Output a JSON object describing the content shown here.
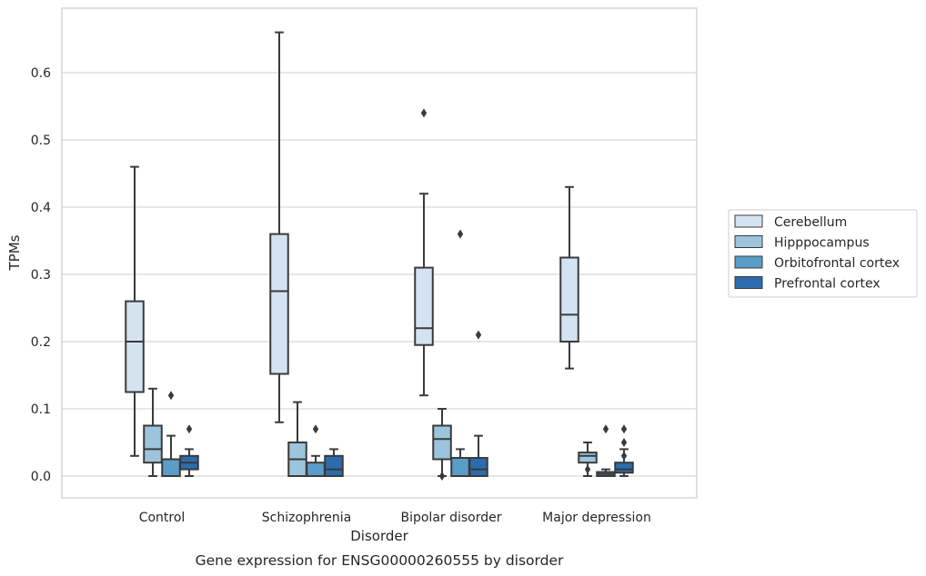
{
  "chart_data": {
    "type": "box",
    "title": "",
    "caption": "Gene expression for ENSG00000260555 by disorder",
    "xlabel": "Disorder",
    "ylabel": "TPMs",
    "ylim": [
      -0.032,
      0.7
    ],
    "yticks": [
      0.0,
      0.1,
      0.2,
      0.3,
      0.4,
      0.5,
      0.6
    ],
    "ytick_labels": [
      "0.0",
      "0.1",
      "0.2",
      "0.3",
      "0.4",
      "0.5",
      "0.6"
    ],
    "grid": "horizontal",
    "legend_position": "right",
    "categories": [
      "Control",
      "Schizophrenia",
      "Bipolar disorder",
      "Major depression"
    ],
    "series": [
      {
        "name": "Cerebellum",
        "color": "#d4e3f1",
        "boxes": [
          {
            "whisker_low": 0.03,
            "q1": 0.125,
            "median": 0.2,
            "q3": 0.26,
            "whisker_high": 0.46,
            "outliers": []
          },
          {
            "whisker_low": 0.08,
            "q1": 0.152,
            "median": 0.275,
            "q3": 0.36,
            "whisker_high": 0.66,
            "outliers": []
          },
          {
            "whisker_low": 0.12,
            "q1": 0.195,
            "median": 0.22,
            "q3": 0.31,
            "whisker_high": 0.42,
            "outliers": [
              0.54
            ]
          },
          {
            "whisker_low": 0.16,
            "q1": 0.2,
            "median": 0.24,
            "q3": 0.325,
            "whisker_high": 0.43,
            "outliers": []
          }
        ]
      },
      {
        "name": "Hipppocampus",
        "color": "#9cc4dc",
        "boxes": [
          {
            "whisker_low": 0.0,
            "q1": 0.02,
            "median": 0.04,
            "q3": 0.075,
            "whisker_high": 0.13,
            "outliers": []
          },
          {
            "whisker_low": 0.0,
            "q1": 0.0,
            "median": 0.025,
            "q3": 0.05,
            "whisker_high": 0.11,
            "outliers": []
          },
          {
            "whisker_low": 0.0,
            "q1": 0.025,
            "median": 0.055,
            "q3": 0.075,
            "whisker_high": 0.1,
            "outliers": [
              0.0
            ]
          },
          {
            "whisker_low": 0.0,
            "q1": 0.02,
            "median": 0.03,
            "q3": 0.035,
            "whisker_high": 0.05,
            "outliers": [
              0.01
            ]
          }
        ]
      },
      {
        "name": "Orbitofrontal cortex",
        "color": "#5a9dc9",
        "boxes": [
          {
            "whisker_low": 0.0,
            "q1": 0.0,
            "median": 0.0,
            "q3": 0.025,
            "whisker_high": 0.06,
            "outliers": [
              0.12
            ]
          },
          {
            "whisker_low": 0.0,
            "q1": 0.0,
            "median": 0.0,
            "q3": 0.02,
            "whisker_high": 0.03,
            "outliers": [
              0.07
            ]
          },
          {
            "whisker_low": 0.0,
            "q1": 0.0,
            "median": 0.0,
            "q3": 0.027,
            "whisker_high": 0.04,
            "outliers": [
              0.36
            ]
          },
          {
            "whisker_low": 0.0,
            "q1": 0.0,
            "median": 0.003,
            "q3": 0.006,
            "whisker_high": 0.01,
            "outliers": [
              0.07
            ]
          }
        ]
      },
      {
        "name": "Prefrontal cortex",
        "color": "#2c6cad",
        "boxes": [
          {
            "whisker_low": 0.0,
            "q1": 0.01,
            "median": 0.02,
            "q3": 0.03,
            "whisker_high": 0.04,
            "outliers": [
              0.07
            ]
          },
          {
            "whisker_low": 0.0,
            "q1": 0.0,
            "median": 0.01,
            "q3": 0.03,
            "whisker_high": 0.04,
            "outliers": []
          },
          {
            "whisker_low": 0.0,
            "q1": 0.0,
            "median": 0.01,
            "q3": 0.027,
            "whisker_high": 0.06,
            "outliers": [
              0.21
            ]
          },
          {
            "whisker_low": 0.0,
            "q1": 0.005,
            "median": 0.01,
            "q3": 0.02,
            "whisker_high": 0.04,
            "outliers": [
              0.05,
              0.03,
              0.07
            ]
          }
        ]
      }
    ]
  }
}
